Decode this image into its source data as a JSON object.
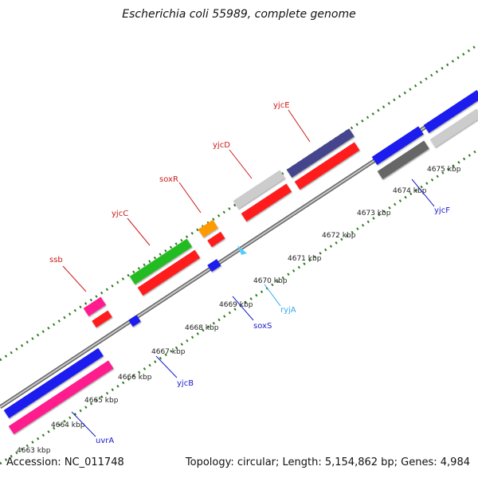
{
  "title": "Escherichia coli 55989, complete genome",
  "footer": {
    "accession": "Accession: NC_011748",
    "stats": "Topology: circular; Length: 5,154,862 bp; Genes: 4,984"
  },
  "colors": {
    "backbone": "#8c8c8c",
    "tick": "#2e7d1e",
    "ruler_text": "#222222"
  },
  "ruler": [
    "4663 kbp",
    "4664 kbp",
    "4665 kbp",
    "4666 kbp",
    "4667 kbp",
    "4668 kbp",
    "4669 kbp",
    "4670 kbp",
    "4671 kbp",
    "4672 kbp",
    "4673 kbp",
    "4674 kbp",
    "4675 kbp"
  ],
  "genes": [
    {
      "name": "uvrA",
      "label_color": "#1a1acc"
    },
    {
      "name": "ssb",
      "label_color": "#cc1a1a"
    },
    {
      "name": "yjcB",
      "label_color": "#1a1acc"
    },
    {
      "name": "soxS",
      "label_color": "#1a1acc"
    },
    {
      "name": "yjcC",
      "label_color": "#cc1a1a"
    },
    {
      "name": "soxR",
      "label_color": "#cc1a1a"
    },
    {
      "name": "ryjA",
      "label_color": "#33aaee"
    },
    {
      "name": "yjcD",
      "label_color": "#cc1a1a"
    },
    {
      "name": "yjcE",
      "label_color": "#cc1a1a"
    },
    {
      "name": "yjcF",
      "label_color": "#1a1acc"
    }
  ],
  "features": [
    {
      "type": "forward-cds",
      "color": "#1a1aee"
    },
    {
      "type": "reverse-cds",
      "color": "#ff1a8c"
    },
    {
      "type": "forward-cds",
      "color": "#ff1a8c"
    },
    {
      "type": "forward-cds",
      "color": "#ff1a1a"
    },
    {
      "type": "reverse-cds",
      "color": "#1a1aee"
    },
    {
      "type": "forward-cds",
      "color": "#22bb22"
    },
    {
      "type": "reverse-cds",
      "color": "#ff1a1a"
    },
    {
      "type": "forward-cds",
      "color": "#ff9900"
    },
    {
      "type": "reverse-cds",
      "color": "#ff1a1a"
    },
    {
      "type": "reverse-cds",
      "color": "#1a1aee"
    },
    {
      "type": "ncrna",
      "color": "#55ccff"
    },
    {
      "type": "forward-cds",
      "color": "#cccccc"
    },
    {
      "type": "reverse-cds",
      "color": "#ff1a1a"
    },
    {
      "type": "forward-cds",
      "color": "#44448e"
    },
    {
      "type": "reverse-cds",
      "color": "#ff1a1a"
    },
    {
      "type": "forward-cds",
      "color": "#1a1aee"
    },
    {
      "type": "reverse-cds",
      "color": "#666666"
    },
    {
      "type": "forward-cds",
      "color": "#1a1aee"
    },
    {
      "type": "reverse-cds",
      "color": "#cccccc"
    }
  ]
}
